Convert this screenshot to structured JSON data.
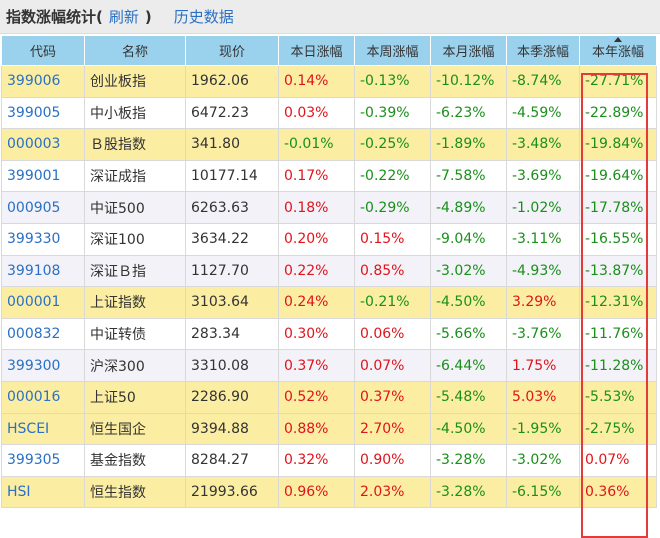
{
  "header": {
    "title": "指数涨幅统计(",
    "refresh": "刷新",
    "close_paren": ")",
    "history": "历史数据"
  },
  "columns": [
    "代码",
    "名称",
    "现价",
    "本日涨幅",
    "本周涨幅",
    "本月涨幅",
    "本季涨幅",
    "本年涨幅"
  ],
  "rows": [
    {
      "code": "399006",
      "name": "创业板指",
      "price": "1962.06",
      "day": "0.14%",
      "week": "-0.13%",
      "month": "-10.12%",
      "quarter": "-8.74%",
      "year": "-27.71%"
    },
    {
      "code": "399005",
      "name": "中小板指",
      "price": "6472.23",
      "day": "0.03%",
      "week": "-0.39%",
      "month": "-6.23%",
      "quarter": "-4.59%",
      "year": "-22.89%"
    },
    {
      "code": "000003",
      "name": "Ｂ股指数",
      "price": "341.80",
      "day": "-0.01%",
      "week": "-0.25%",
      "month": "-1.89%",
      "quarter": "-3.48%",
      "year": "-19.84%"
    },
    {
      "code": "399001",
      "name": "深证成指",
      "price": "10177.14",
      "day": "0.17%",
      "week": "-0.22%",
      "month": "-7.58%",
      "quarter": "-3.69%",
      "year": "-19.64%"
    },
    {
      "code": "000905",
      "name": "中证500",
      "price": "6263.63",
      "day": "0.18%",
      "week": "-0.29%",
      "month": "-4.89%",
      "quarter": "-1.02%",
      "year": "-17.78%"
    },
    {
      "code": "399330",
      "name": "深证100",
      "price": "3634.22",
      "day": "0.20%",
      "week": "0.15%",
      "month": "-9.04%",
      "quarter": "-3.11%",
      "year": "-16.55%"
    },
    {
      "code": "399108",
      "name": "深证Ｂ指",
      "price": "1127.70",
      "day": "0.22%",
      "week": "0.85%",
      "month": "-3.02%",
      "quarter": "-4.93%",
      "year": "-13.87%"
    },
    {
      "code": "000001",
      "name": "上证指数",
      "price": "3103.64",
      "day": "0.24%",
      "week": "-0.21%",
      "month": "-4.50%",
      "quarter": "3.29%",
      "year": "-12.31%"
    },
    {
      "code": "000832",
      "name": "中证转债",
      "price": "283.34",
      "day": "0.30%",
      "week": "0.06%",
      "month": "-5.66%",
      "quarter": "-3.76%",
      "year": "-11.76%"
    },
    {
      "code": "399300",
      "name": "沪深300",
      "price": "3310.08",
      "day": "0.37%",
      "week": "0.07%",
      "month": "-6.44%",
      "quarter": "1.75%",
      "year": "-11.28%"
    },
    {
      "code": "000016",
      "name": "上证50",
      "price": "2286.90",
      "day": "0.52%",
      "week": "0.37%",
      "month": "-5.48%",
      "quarter": "5.03%",
      "year": "-5.53%"
    },
    {
      "code": "HSCEI",
      "name": "恒生国企",
      "price": "9394.88",
      "day": "0.88%",
      "week": "2.70%",
      "month": "-4.50%",
      "quarter": "-1.95%",
      "year": "-2.75%"
    },
    {
      "code": "399305",
      "name": "基金指数",
      "price": "8284.27",
      "day": "0.32%",
      "week": "0.90%",
      "month": "-3.28%",
      "quarter": "-3.02%",
      "year": "0.07%"
    },
    {
      "code": "HSI",
      "name": "恒生指数",
      "price": "21993.66",
      "day": "0.96%",
      "week": "2.03%",
      "month": "-3.28%",
      "quarter": "-6.15%",
      "year": "0.36%"
    }
  ],
  "row_styles": [
    "hl",
    "plain",
    "hl",
    "plain",
    "alt",
    "plain",
    "alt",
    "hl",
    "plain",
    "alt",
    "hl",
    "hl",
    "plain",
    "hl"
  ],
  "sort": {
    "column": "本年涨幅",
    "direction": "ascending",
    "icon": "sort-up-icon"
  },
  "colors": {
    "up": "#e0141b",
    "down": "#1a8f1a",
    "link": "#2a70c4",
    "header_bg": "#9ad2ee",
    "highlight_row": "#fbeea3",
    "selection_box": "#e53a3a"
  }
}
